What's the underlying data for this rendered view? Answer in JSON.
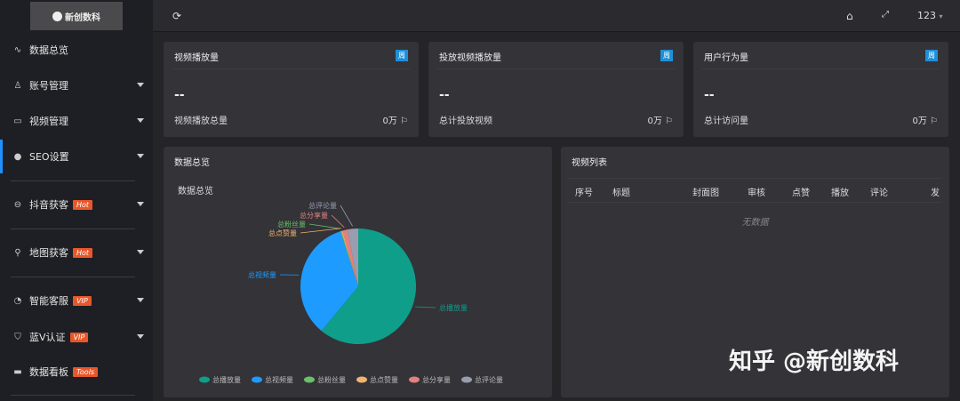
{
  "logo": {
    "text": "新创数科"
  },
  "sidebar": {
    "items": [
      {
        "label": "数据总览",
        "icon": "pulse-icon",
        "badge": "",
        "arrow": false
      },
      {
        "label": "账号管理",
        "icon": "user-icon",
        "badge": "",
        "arrow": true
      },
      {
        "label": "视频管理",
        "icon": "video-icon",
        "badge": "",
        "arrow": true
      },
      {
        "label": "SEO设置",
        "icon": "globe-icon",
        "badge": "",
        "arrow": true
      },
      {
        "label": "抖音获客",
        "icon": "tiktok-icon",
        "badge": "Hot",
        "arrow": true
      },
      {
        "label": "地图获客",
        "icon": "location-icon",
        "badge": "Hot",
        "arrow": true
      },
      {
        "label": "智能客服",
        "icon": "headset-icon",
        "badge": "VIP",
        "arrow": true
      },
      {
        "label": "蓝V认证",
        "icon": "shield-check-icon",
        "badge": "VIP",
        "arrow": true
      },
      {
        "label": "数据看板",
        "icon": "monitor-icon",
        "badge": "Tools",
        "arrow": false
      }
    ]
  },
  "topbar": {
    "user": "123"
  },
  "cards": [
    {
      "title": "视频播放量",
      "badge": "周",
      "value": "--",
      "footer": "视频播放总量",
      "footer_value": "0万"
    },
    {
      "title": "投放视频播放量",
      "badge": "周",
      "value": "--",
      "footer": "总计投放视频",
      "footer_value": "0万"
    },
    {
      "title": "用户行为量",
      "badge": "周",
      "value": "--",
      "footer": "总计访问量",
      "footer_value": "0万"
    }
  ],
  "overview": {
    "title": "数据总览"
  },
  "chart_data": {
    "type": "pie",
    "title": "数据总览",
    "categories": [
      "总播放量",
      "总视频量",
      "总粉丝量",
      "总点赞量",
      "总分享量",
      "总评论量"
    ],
    "values": [
      61,
      34,
      0.3,
      0.3,
      1.4,
      3
    ],
    "colors": [
      "#0f9e8a",
      "#1e9bff",
      "#6abf69",
      "#f2b36f",
      "#e2817f",
      "#9a9cb0"
    ],
    "legend": "bottom"
  },
  "video_list": {
    "title": "视频列表",
    "columns": [
      "序号",
      "标题",
      "封面图",
      "审核",
      "点赞",
      "播放",
      "评论",
      "发"
    ],
    "empty": "无数据"
  },
  "watermark": "知乎 @新创数科"
}
